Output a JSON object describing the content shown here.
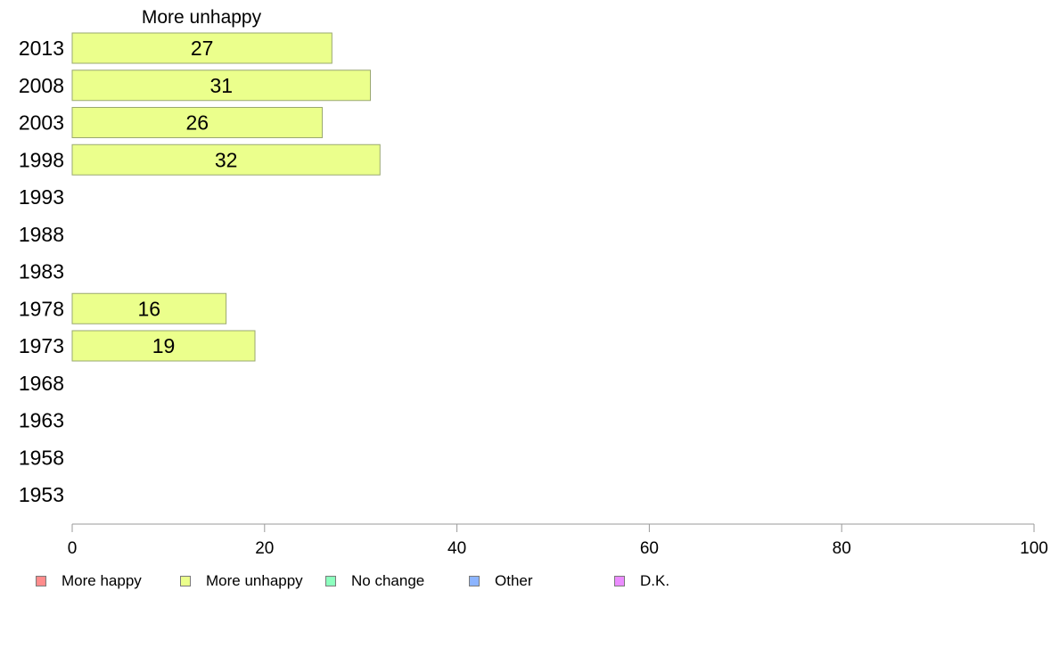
{
  "chart_data": {
    "type": "bar",
    "orientation": "horizontal",
    "title": "More unhappy",
    "categories": [
      "2013",
      "2008",
      "2003",
      "1998",
      "1993",
      "1988",
      "1983",
      "1978",
      "1973",
      "1968",
      "1963",
      "1958",
      "1953"
    ],
    "series": [
      {
        "name": "More unhappy",
        "color": "#ebff8c",
        "values": [
          27,
          31,
          26,
          32,
          null,
          null,
          null,
          16,
          19,
          null,
          null,
          null,
          null
        ]
      }
    ],
    "data_labels": [
      "27",
      "31",
      "26",
      "32",
      "",
      "",
      "",
      "16",
      "19",
      "",
      "",
      "",
      ""
    ],
    "xlim": [
      0,
      100
    ],
    "xticks": [
      "0",
      "20",
      "40",
      "60",
      "80",
      "100"
    ],
    "grid": false,
    "legend_position": "bottom"
  },
  "legend": [
    {
      "label": "More happy",
      "color": "#ff8c8c"
    },
    {
      "label": "More unhappy",
      "color": "#ebff8c"
    },
    {
      "label": "No change",
      "color": "#8cffbe"
    },
    {
      "label": "Other",
      "color": "#8cb4ff"
    },
    {
      "label": "D.K.",
      "color": "#eb8cff"
    }
  ]
}
